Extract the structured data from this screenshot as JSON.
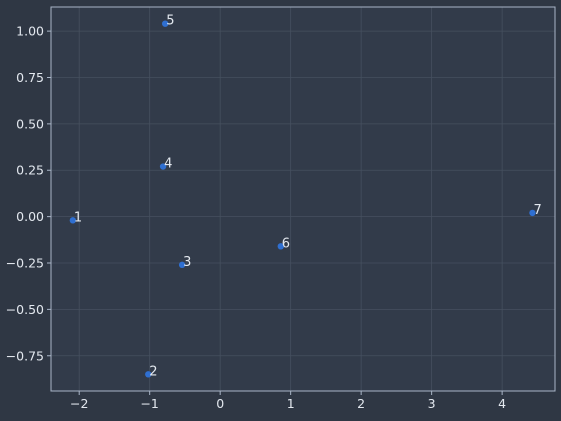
{
  "chart_data": {
    "type": "scatter",
    "title": "",
    "xlabel": "",
    "ylabel": "",
    "xlim": [
      -2.4,
      4.75
    ],
    "ylim": [
      -0.94,
      1.13
    ],
    "x_ticks": [
      -2,
      -1,
      0,
      1,
      2,
      3,
      4
    ],
    "x_tick_labels": [
      "−2",
      "−1",
      "0",
      "1",
      "2",
      "3",
      "4"
    ],
    "y_ticks": [
      -0.75,
      -0.5,
      -0.25,
      0.0,
      0.25,
      0.5,
      0.75,
      1.0
    ],
    "y_tick_labels": [
      "−0.75",
      "−0.50",
      "−0.25",
      "0.00",
      "0.25",
      "0.50",
      "0.75",
      "1.00"
    ],
    "grid": true,
    "points": [
      {
        "label": "1",
        "x": -2.09,
        "y": -0.02
      },
      {
        "label": "2",
        "x": -1.02,
        "y": -0.85
      },
      {
        "label": "3",
        "x": -0.54,
        "y": -0.26
      },
      {
        "label": "4",
        "x": -0.81,
        "y": 0.27
      },
      {
        "label": "5",
        "x": -0.78,
        "y": 1.04
      },
      {
        "label": "6",
        "x": 0.86,
        "y": -0.16
      },
      {
        "label": "7",
        "x": 4.43,
        "y": 0.02
      }
    ],
    "colors": {
      "background": "#2f3744",
      "plot_background": "#323b4a",
      "grid": "#46505f",
      "frame": "#aab6c8",
      "marker": "#2f6fd1",
      "text": "#e3e8ef"
    }
  }
}
